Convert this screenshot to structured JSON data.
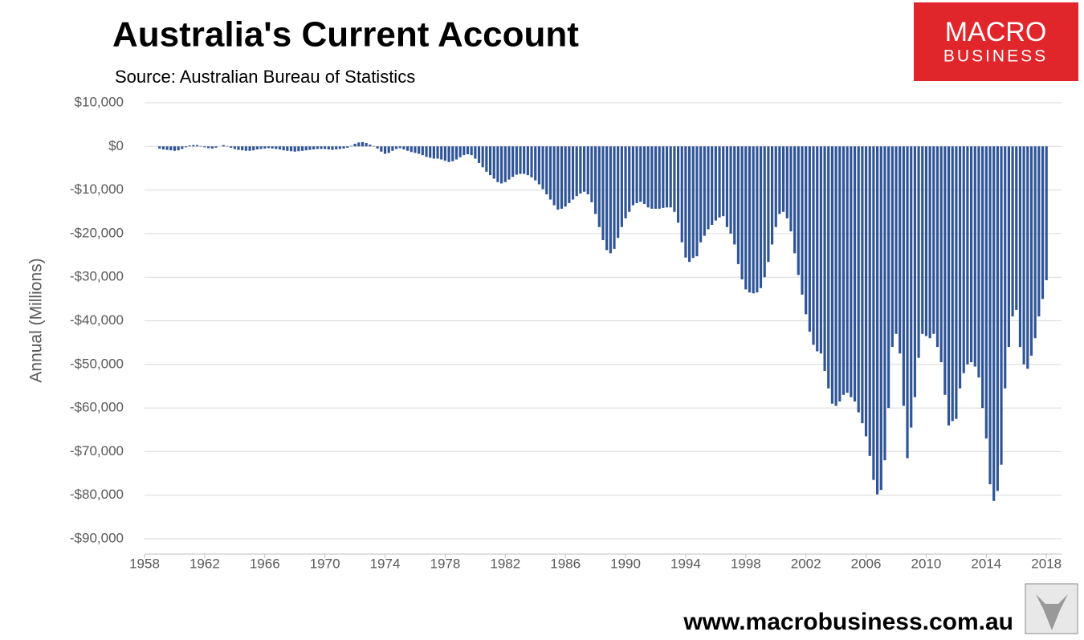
{
  "chart_data": {
    "type": "bar",
    "title": "Australia's Current Account",
    "subtitle": "Source: Australian Bureau of Statistics",
    "y_label": "Annual (Millions)",
    "brand": [
      "MACRO",
      "BUSINESS"
    ],
    "footer": "www.macrobusiness.com.au",
    "color": "#2f5597",
    "grid": true,
    "xlim": [
      1958,
      2019
    ],
    "xticks": [
      1958,
      1962,
      1966,
      1970,
      1974,
      1978,
      1982,
      1986,
      1990,
      1994,
      1998,
      2002,
      2006,
      2010,
      2014,
      2018
    ],
    "ylim": [
      -93500,
      10000
    ],
    "yticks": [
      {
        "value": 10000,
        "label": "$10,000"
      },
      {
        "value": 0,
        "label": "$0"
      },
      {
        "value": -10000,
        "label": "-$10,000"
      },
      {
        "value": -20000,
        "label": "-$20,000"
      },
      {
        "value": -30000,
        "label": "-$30,000"
      },
      {
        "value": -40000,
        "label": "-$40,000"
      },
      {
        "value": -50000,
        "label": "-$50,000"
      },
      {
        "value": -60000,
        "label": "-$60,000"
      },
      {
        "value": -70000,
        "label": "-$70,000"
      },
      {
        "value": -80000,
        "label": "-$80,000"
      },
      {
        "value": -90000,
        "label": "-$90,000"
      }
    ],
    "x": [
      1959,
      1959.25,
      1959.5,
      1959.75,
      1960,
      1960.25,
      1960.5,
      1960.75,
      1961,
      1961.25,
      1961.5,
      1961.75,
      1962,
      1962.25,
      1962.5,
      1962.75,
      1963,
      1963.25,
      1963.5,
      1963.75,
      1964,
      1964.25,
      1964.5,
      1964.75,
      1965,
      1965.25,
      1965.5,
      1965.75,
      1966,
      1966.25,
      1966.5,
      1966.75,
      1967,
      1967.25,
      1967.5,
      1967.75,
      1968,
      1968.25,
      1968.5,
      1968.75,
      1969,
      1969.25,
      1969.5,
      1969.75,
      1970,
      1970.25,
      1970.5,
      1970.75,
      1971,
      1971.25,
      1971.5,
      1971.75,
      1972,
      1972.25,
      1972.5,
      1972.75,
      1973,
      1973.25,
      1973.5,
      1973.75,
      1974,
      1974.25,
      1974.5,
      1974.75,
      1975,
      1975.25,
      1975.5,
      1975.75,
      1976,
      1976.25,
      1976.5,
      1976.75,
      1977,
      1977.25,
      1977.5,
      1977.75,
      1978,
      1978.25,
      1978.5,
      1978.75,
      1979,
      1979.25,
      1979.5,
      1979.75,
      1980,
      1980.25,
      1980.5,
      1980.75,
      1981,
      1981.25,
      1981.5,
      1981.75,
      1982,
      1982.25,
      1982.5,
      1982.75,
      1983,
      1983.25,
      1983.5,
      1983.75,
      1984,
      1984.25,
      1984.5,
      1984.75,
      1985,
      1985.25,
      1985.5,
      1985.75,
      1986,
      1986.25,
      1986.5,
      1986.75,
      1987,
      1987.25,
      1987.5,
      1987.75,
      1988,
      1988.25,
      1988.5,
      1988.75,
      1989,
      1989.25,
      1989.5,
      1989.75,
      1990,
      1990.25,
      1990.5,
      1990.75,
      1991,
      1991.25,
      1991.5,
      1991.75,
      1992,
      1992.25,
      1992.5,
      1992.75,
      1993,
      1993.25,
      1993.5,
      1993.75,
      1994,
      1994.25,
      1994.5,
      1994.75,
      1995,
      1995.25,
      1995.5,
      1995.75,
      1996,
      1996.25,
      1996.5,
      1996.75,
      1997,
      1997.25,
      1997.5,
      1997.75,
      1998,
      1998.25,
      1998.5,
      1998.75,
      1999,
      1999.25,
      1999.5,
      1999.75,
      2000,
      2000.25,
      2000.5,
      2000.75,
      2001,
      2001.25,
      2001.5,
      2001.75,
      2002,
      2002.25,
      2002.5,
      2002.75,
      2003,
      2003.25,
      2003.5,
      2003.75,
      2004,
      2004.25,
      2004.5,
      2004.75,
      2005,
      2005.25,
      2005.5,
      2005.75,
      2006,
      2006.25,
      2006.5,
      2006.75,
      2007,
      2007.25,
      2007.5,
      2007.75,
      2008,
      2008.25,
      2008.5,
      2008.75,
      2009,
      2009.25,
      2009.5,
      2009.75,
      2010,
      2010.25,
      2010.5,
      2010.75,
      2011,
      2011.25,
      2011.5,
      2011.75,
      2012,
      2012.25,
      2012.5,
      2012.75,
      2013,
      2013.25,
      2013.5,
      2013.75,
      2014,
      2014.25,
      2014.5,
      2014.75,
      2015,
      2015.25,
      2015.5,
      2015.75,
      2016,
      2016.25,
      2016.5,
      2016.75,
      2017,
      2017.25,
      2017.5,
      2017.75,
      2018
    ],
    "values": [
      -500,
      -700,
      -800,
      -900,
      -1000,
      -900,
      -600,
      -200,
      200,
      300,
      300,
      100,
      -200,
      -400,
      -500,
      -300,
      0,
      300,
      100,
      -300,
      -600,
      -800,
      -900,
      -1000,
      -1000,
      -900,
      -700,
      -600,
      -500,
      -400,
      -500,
      -600,
      -700,
      -900,
      -1000,
      -1100,
      -1200,
      -1100,
      -1000,
      -900,
      -800,
      -700,
      -600,
      -600,
      -600,
      -700,
      -800,
      -700,
      -600,
      -500,
      -300,
      100,
      600,
      900,
      1000,
      800,
      400,
      100,
      -500,
      -1200,
      -1700,
      -1500,
      -1000,
      -600,
      -400,
      -700,
      -1000,
      -1300,
      -1500,
      -1700,
      -2000,
      -2400,
      -2600,
      -2800,
      -2800,
      -3000,
      -3300,
      -3600,
      -3400,
      -3000,
      -2500,
      -2000,
      -1800,
      -2000,
      -2800,
      -3800,
      -4800,
      -5800,
      -6600,
      -7400,
      -8200,
      -8500,
      -8200,
      -7600,
      -7000,
      -6500,
      -6300,
      -6300,
      -6600,
      -7100,
      -7800,
      -8700,
      -9800,
      -11000,
      -12200,
      -13500,
      -14500,
      -14300,
      -13800,
      -13000,
      -12200,
      -11400,
      -10800,
      -10400,
      -11000,
      -12800,
      -15500,
      -18500,
      -21500,
      -23800,
      -24500,
      -23500,
      -21000,
      -18500,
      -16500,
      -15000,
      -13500,
      -13000,
      -12700,
      -13200,
      -14000,
      -14300,
      -14300,
      -14300,
      -14100,
      -14000,
      -14000,
      -15000,
      -17500,
      -22000,
      -25500,
      -26500,
      -25600,
      -25200,
      -22000,
      -20500,
      -19000,
      -18000,
      -17000,
      -16300,
      -16000,
      -18500,
      -20000,
      -22500,
      -27000,
      -30500,
      -32800,
      -33500,
      -33700,
      -33500,
      -32500,
      -30000,
      -26500,
      -22500,
      -18500,
      -15500,
      -15000,
      -16500,
      -19500,
      -24500,
      -29500,
      -34000,
      -38500,
      -42500,
      -45500,
      -47000,
      -47500,
      -51500,
      -55500,
      -59000,
      -59500,
      -58500,
      -57000,
      -56500,
      -57500,
      -58500,
      -61000,
      -63500,
      -66500,
      -71000,
      -76500,
      -79800,
      -78800,
      -72000,
      -60000,
      -46000,
      -43000,
      -47500,
      -59500,
      -71500,
      -64500,
      -57500,
      -48500,
      -43000,
      -43500,
      -44000,
      -43000,
      -46000,
      -49500,
      -57000,
      -64000,
      -63000,
      -62500,
      -55500,
      -52000,
      -50000,
      -49500,
      -50500,
      -53000,
      -60000,
      -67000,
      -77500,
      -81300,
      -79000,
      -73000,
      -55500,
      -46000,
      -39000,
      -37500,
      -46000,
      -50000,
      -51000,
      -48000,
      -44000,
      -39000,
      -35000,
      -30700
    ]
  }
}
